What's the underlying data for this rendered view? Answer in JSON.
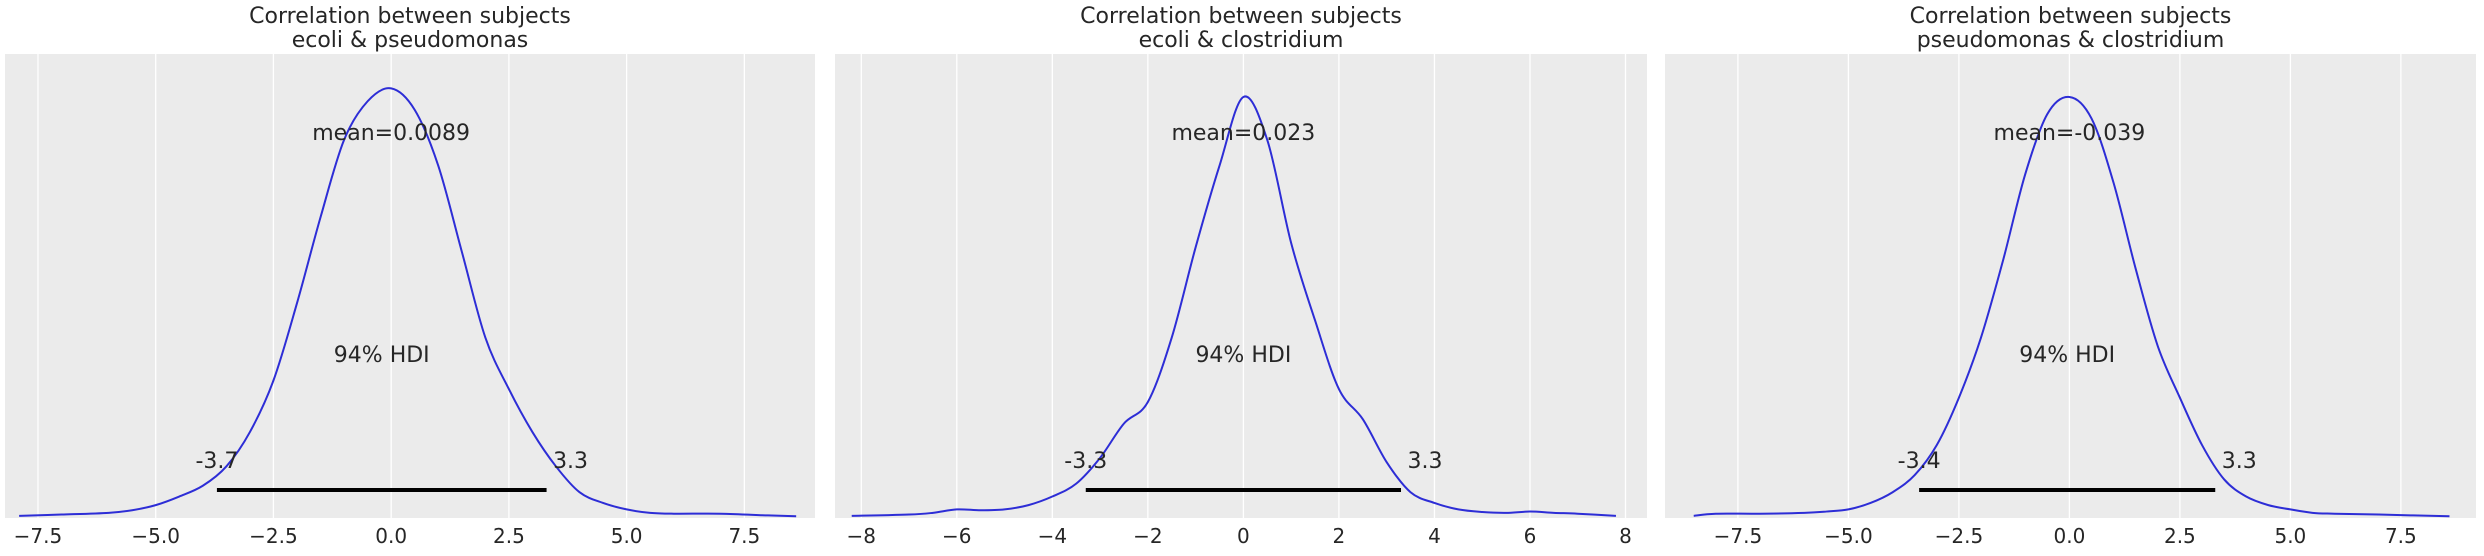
{
  "colors": {
    "background": "#ebebeb",
    "grid": "#ffffff",
    "density_line": "#2d2dd6",
    "hdi_bar": "#000000",
    "text": "#262626"
  },
  "chart_data": [
    {
      "type": "line",
      "title": "Correlation between subjects\necoli & pseudomonas",
      "title_lines": [
        "Correlation between subjects",
        "ecoli & pseudomonas"
      ],
      "xlabel": "",
      "ylabel": "",
      "xlim": [
        -8.2,
        9.0
      ],
      "ylim": [
        0,
        1.08
      ],
      "xticks": [
        -7.5,
        -5.0,
        -2.5,
        0.0,
        2.5,
        5.0,
        7.5
      ],
      "xtick_labels": [
        "−7.5",
        "−5.0",
        "−2.5",
        "0.0",
        "2.5",
        "5.0",
        "7.5"
      ],
      "grid": true,
      "mean_label": "mean=0.0089",
      "hdi_label": "94% HDI",
      "hdi_low": -3.7,
      "hdi_high": 3.3,
      "hdi_low_label": "-3.7",
      "hdi_high_label": "3.3",
      "series": [
        {
          "x": [
            -7.9,
            -7.0,
            -6.0,
            -5.5,
            -5.0,
            -4.5,
            -4.0,
            -3.5,
            -3.0,
            -2.5,
            -2.0,
            -1.5,
            -1.0,
            -0.5,
            0.0,
            0.5,
            1.0,
            1.5,
            2.0,
            2.5,
            3.0,
            3.5,
            4.0,
            4.5,
            5.0,
            5.5,
            6.0,
            7.0,
            8.0,
            8.6
          ],
          "y": [
            0.005,
            0.008,
            0.012,
            0.018,
            0.03,
            0.05,
            0.075,
            0.12,
            0.2,
            0.32,
            0.5,
            0.7,
            0.88,
            0.97,
            1.0,
            0.95,
            0.82,
            0.62,
            0.42,
            0.3,
            0.2,
            0.12,
            0.06,
            0.035,
            0.02,
            0.012,
            0.01,
            0.01,
            0.006,
            0.004
          ]
        }
      ]
    },
    {
      "type": "line",
      "title": "Correlation between subjects\necoli & clostridium",
      "title_lines": [
        "Correlation between subjects",
        "ecoli & clostridium"
      ],
      "xlabel": "",
      "ylabel": "",
      "xlim": [
        -8.55,
        8.45
      ],
      "ylim": [
        0,
        1.08
      ],
      "xticks": [
        -8,
        -6,
        -4,
        -2,
        0,
        2,
        4,
        6,
        8
      ],
      "xtick_labels": [
        "−8",
        "−6",
        "−4",
        "−2",
        "0",
        "2",
        "4",
        "6",
        "8"
      ],
      "grid": true,
      "mean_label": "mean=0.023",
      "hdi_label": "94% HDI",
      "hdi_low": -3.3,
      "hdi_high": 3.3,
      "hdi_low_label": "-3.3",
      "hdi_high_label": "3.3",
      "series": [
        {
          "x": [
            -8.2,
            -7.0,
            -6.5,
            -6.0,
            -5.5,
            -5.0,
            -4.5,
            -4.0,
            -3.5,
            -3.0,
            -2.5,
            -2.0,
            -1.5,
            -1.0,
            -0.5,
            0.0,
            0.5,
            1.0,
            1.5,
            2.0,
            2.5,
            3.0,
            3.5,
            4.0,
            4.5,
            5.0,
            5.5,
            6.0,
            6.5,
            7.0,
            7.8
          ],
          "y": [
            0.005,
            0.008,
            0.012,
            0.02,
            0.018,
            0.02,
            0.03,
            0.05,
            0.08,
            0.14,
            0.22,
            0.27,
            0.42,
            0.63,
            0.82,
            0.98,
            0.88,
            0.64,
            0.46,
            0.3,
            0.23,
            0.13,
            0.06,
            0.035,
            0.02,
            0.014,
            0.012,
            0.015,
            0.012,
            0.01,
            0.005
          ]
        }
      ]
    },
    {
      "type": "line",
      "title": "Correlation between subjects\npseudomonas & clostridium",
      "title_lines": [
        "Correlation between subjects",
        "pseudomonas & clostridium"
      ],
      "xlabel": "",
      "ylabel": "",
      "xlim": [
        -9.15,
        9.2
      ],
      "ylim": [
        0,
        1.08
      ],
      "xticks": [
        -7.5,
        -5.0,
        -2.5,
        0.0,
        2.5,
        5.0,
        7.5
      ],
      "xtick_labels": [
        "−7.5",
        "−5.0",
        "−2.5",
        "0.0",
        "2.5",
        "5.0",
        "7.5"
      ],
      "grid": true,
      "mean_label": "mean=-0.039",
      "hdi_label": "94% HDI",
      "hdi_low": -3.4,
      "hdi_high": 3.3,
      "hdi_low_label": "-3.4",
      "hdi_high_label": "3.3",
      "series": [
        {
          "x": [
            -8.5,
            -8.0,
            -7.0,
            -6.0,
            -5.5,
            -5.0,
            -4.5,
            -4.0,
            -3.5,
            -3.0,
            -2.5,
            -2.0,
            -1.5,
            -1.0,
            -0.5,
            0.0,
            0.5,
            1.0,
            1.5,
            2.0,
            2.5,
            3.0,
            3.5,
            4.0,
            4.5,
            5.0,
            5.5,
            6.0,
            7.0,
            8.6
          ],
          "y": [
            0.005,
            0.01,
            0.01,
            0.012,
            0.015,
            0.02,
            0.035,
            0.06,
            0.1,
            0.17,
            0.28,
            0.42,
            0.6,
            0.8,
            0.94,
            0.98,
            0.93,
            0.78,
            0.58,
            0.4,
            0.28,
            0.17,
            0.09,
            0.05,
            0.03,
            0.02,
            0.012,
            0.01,
            0.008,
            0.004
          ]
        }
      ]
    }
  ]
}
